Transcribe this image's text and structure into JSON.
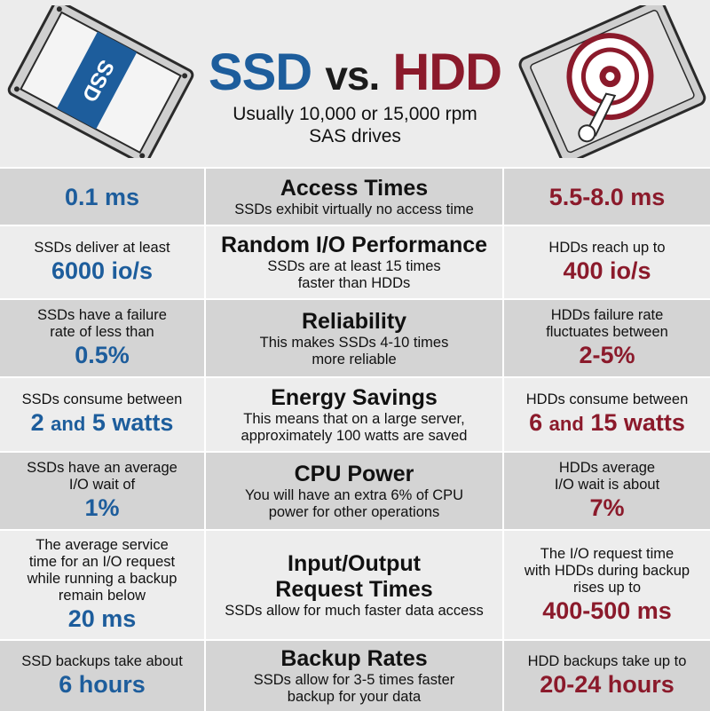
{
  "header": {
    "title_ssd": "SSD",
    "title_vs": "vs.",
    "title_hdd": "HDD",
    "subtitle_line1": "Usually 10,000 or 15,000 rpm",
    "subtitle_line2": "SAS drives",
    "ssd_label": "SSD"
  },
  "colors": {
    "ssd": "#1d5d9c",
    "hdd": "#8b1a2b",
    "row_shade": "#d4d4d4",
    "row_light": "#ededed"
  },
  "rows": [
    {
      "title": "Access Times",
      "sub": [
        "SSDs exhibit virtually no access time"
      ],
      "ssd_desc": [],
      "ssd_value": "0.1 ms",
      "hdd_desc": [],
      "hdd_value": "5.5-8.0 ms"
    },
    {
      "title": "Random I/O Performance",
      "sub": [
        "SSDs are at least 15 times",
        "faster than HDDs"
      ],
      "ssd_desc": [
        "SSDs deliver at least"
      ],
      "ssd_value": "6000 io/s",
      "hdd_desc": [
        "HDDs reach up to"
      ],
      "hdd_value": "400 io/s"
    },
    {
      "title": "Reliability",
      "sub": [
        "This makes SSDs 4-10 times",
        "more reliable"
      ],
      "ssd_desc": [
        "SSDs have a failure",
        "rate of less than"
      ],
      "ssd_value": "0.5%",
      "hdd_desc": [
        "HDDs failure rate",
        "fluctuates between"
      ],
      "hdd_value": "2-5%"
    },
    {
      "title": "Energy Savings",
      "sub": [
        "This means that on a large server,",
        "approximately 100 watts are saved"
      ],
      "ssd_desc": [
        "SSDs consume between"
      ],
      "ssd_value_parts": [
        "2",
        "and",
        "5 watts"
      ],
      "hdd_desc": [
        "HDDs consume between"
      ],
      "hdd_value_parts": [
        "6",
        "and",
        "15 watts"
      ]
    },
    {
      "title": "CPU Power",
      "sub": [
        "You will have an extra 6% of CPU",
        "power for other operations"
      ],
      "ssd_desc": [
        "SSDs have an average",
        "I/O wait of"
      ],
      "ssd_value": "1%",
      "hdd_desc": [
        "HDDs average",
        "I/O wait is about"
      ],
      "hdd_value": "7%"
    },
    {
      "title_lines": [
        "Input/Output",
        "Request Times"
      ],
      "sub": [
        "SSDs allow for much faster data access"
      ],
      "ssd_desc": [
        "The average service",
        "time for an I/O request",
        "while running a backup",
        "remain below"
      ],
      "ssd_value": "20 ms",
      "hdd_desc": [
        "The I/O request time",
        "with HDDs during backup",
        "rises up to"
      ],
      "hdd_value": "400-500 ms"
    },
    {
      "title": "Backup Rates",
      "sub": [
        "SSDs allow for 3-5 times faster",
        "backup for your data"
      ],
      "ssd_desc": [
        "SSD backups take about"
      ],
      "ssd_value": "6 hours",
      "hdd_desc": [
        "HDD backups take up to"
      ],
      "hdd_value": "20-24 hours"
    }
  ]
}
